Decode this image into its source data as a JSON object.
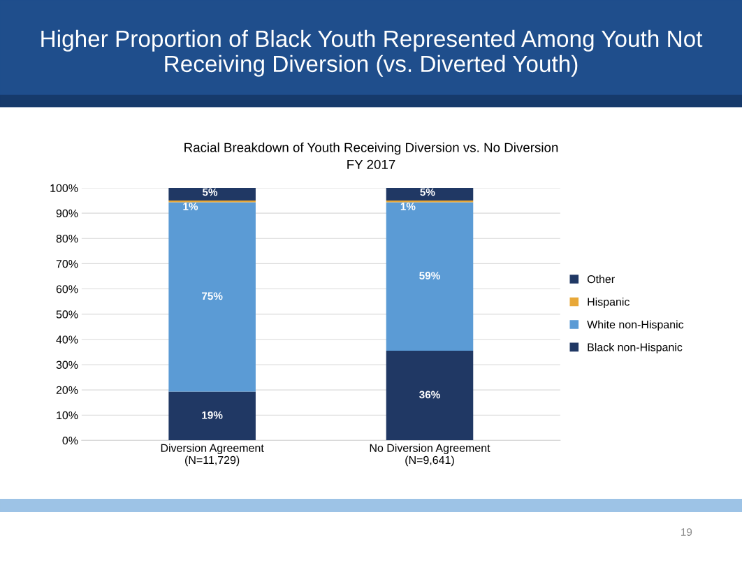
{
  "chart_data": {
    "type": "bar",
    "stacked": true,
    "title": "Higher Proportion of Black Youth Represented Among Youth Not Receiving Diversion (vs. Diverted Youth)",
    "subtitle": "Racial Breakdown of Youth Receiving Diversion vs. No Diversion\nFY 2017",
    "categories": [
      "Diversion Agreement\n(N=11,729)",
      "No Diversion Agreement\n(N=9,641)"
    ],
    "series": [
      {
        "name": "Black non-Hispanic",
        "color": "#203864",
        "values": [
          19.3,
          35.5
        ],
        "value_labels": [
          "19%",
          "36%"
        ]
      },
      {
        "name": "White non-Hispanic",
        "color": "#5b9bd5",
        "values": [
          75,
          58.8
        ],
        "value_labels": [
          "75%",
          "59%"
        ]
      },
      {
        "name": "Hispanic",
        "color": "#e8a838",
        "values": [
          0.7,
          0.7
        ],
        "value_labels": [
          "1%",
          "1%"
        ]
      },
      {
        "name": "Other",
        "color": "#203864",
        "values": [
          5,
          5
        ],
        "value_labels": [
          "5%",
          "5%"
        ]
      }
    ],
    "ylim": [
      0,
      100
    ],
    "yticks": [
      {
        "value": 0,
        "label": "0%"
      },
      {
        "value": 10,
        "label": "10%"
      },
      {
        "value": 20,
        "label": "20%"
      },
      {
        "value": 30,
        "label": "30%"
      },
      {
        "value": 40,
        "label": "40%"
      },
      {
        "value": 50,
        "label": "50%"
      },
      {
        "value": 60,
        "label": "60%"
      },
      {
        "value": 70,
        "label": "70%"
      },
      {
        "value": 80,
        "label": "80%"
      },
      {
        "value": 90,
        "label": "90%"
      },
      {
        "value": 100,
        "label": "100%"
      }
    ],
    "grid": "y",
    "legend": "right",
    "annotations": [
      "19"
    ]
  }
}
